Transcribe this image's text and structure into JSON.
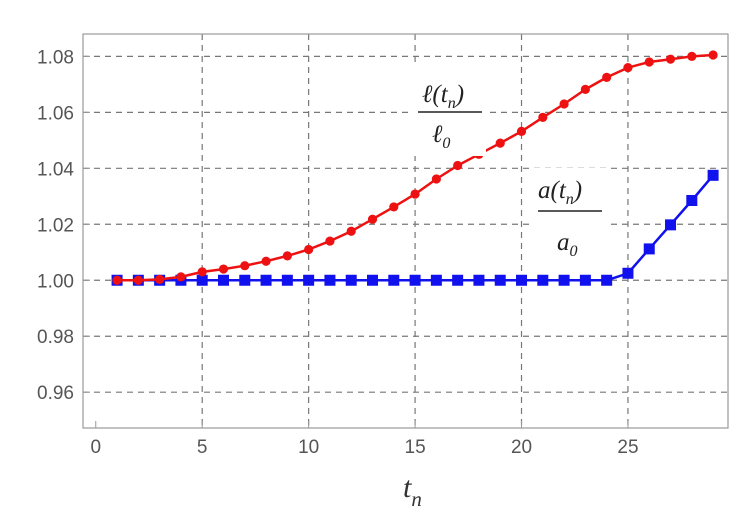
{
  "chart_data": {
    "type": "line",
    "xlabel": {
      "main": "t",
      "sub": "n"
    },
    "ylabel": "",
    "xlim": [
      -0.6,
      29.7
    ],
    "ylim": [
      0.9472,
      1.088
    ],
    "xticks": [
      0,
      5,
      10,
      15,
      20,
      25
    ],
    "xtick_labels": [
      "0",
      "5",
      "10",
      "15",
      "20",
      "25"
    ],
    "yticks": [
      0.96,
      0.98,
      1.0,
      1.02,
      1.04,
      1.06,
      1.08
    ],
    "ytick_labels": [
      "0.96",
      "0.98",
      "1.00",
      "1.02",
      "1.04",
      "1.06",
      "1.08"
    ],
    "grid": true,
    "grid_style": "dashed",
    "series": [
      {
        "marker": "circle",
        "color": "#ee1111",
        "label": {
          "num_main": "ℓ(t",
          "num_sub": "n",
          "num_close": ")",
          "den_main": "ℓ",
          "den_sub": "0"
        },
        "x": [
          1,
          2,
          3,
          4,
          5,
          6,
          7,
          8,
          9,
          10,
          11,
          12,
          13,
          14,
          15,
          16,
          17,
          18,
          19,
          20,
          21,
          22,
          23,
          24,
          25,
          26,
          27,
          28,
          29
        ],
        "y": [
          1.0,
          1.0,
          1.0003,
          1.0012,
          1.003,
          1.004,
          1.0052,
          1.0068,
          1.0087,
          1.011,
          1.014,
          1.0175,
          1.0218,
          1.0262,
          1.0308,
          1.0362,
          1.041,
          1.045,
          1.049,
          1.0532,
          1.0582,
          1.063,
          1.0682,
          1.0725,
          1.076,
          1.078,
          1.079,
          1.08,
          1.0805
        ]
      },
      {
        "marker": "square",
        "color": "#1111ee",
        "label": {
          "num_main": "a(t",
          "num_sub": "n",
          "num_close": ")",
          "den_main": "a",
          "den_sub": "0"
        },
        "x": [
          1,
          2,
          3,
          4,
          5,
          6,
          7,
          8,
          9,
          10,
          11,
          12,
          13,
          14,
          15,
          16,
          17,
          18,
          19,
          20,
          21,
          22,
          23,
          24,
          25,
          26,
          27,
          28,
          29
        ],
        "y": [
          1.0,
          1.0,
          1.0,
          1.0,
          1.0,
          1.0,
          1.0,
          1.0,
          1.0,
          1.0,
          1.0,
          1.0,
          1.0,
          1.0,
          1.0,
          1.0,
          1.0,
          1.0,
          1.0,
          1.0,
          1.0,
          1.0,
          1.0,
          1.0,
          1.0025,
          1.0112,
          1.0198,
          1.0285,
          1.0375
        ]
      }
    ]
  }
}
